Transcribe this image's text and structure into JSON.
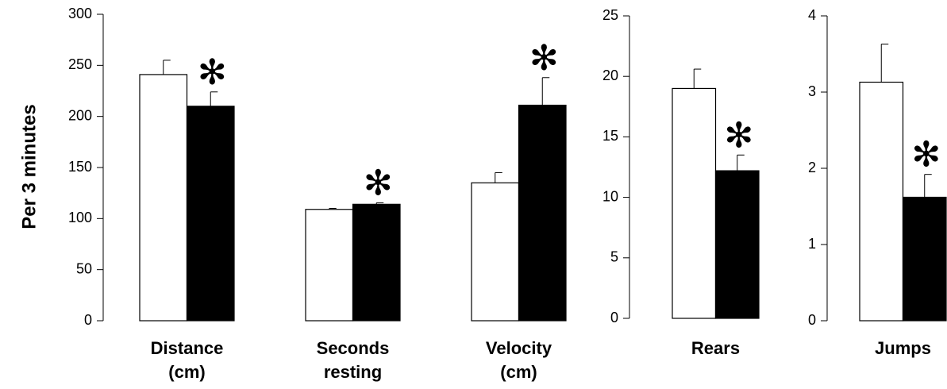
{
  "chart_data": [
    {
      "type": "bar",
      "y_label": "Per 3 minutes",
      "categories": [
        [
          "Distance",
          "(cm)"
        ],
        [
          "Seconds",
          "resting"
        ],
        [
          "Velocity",
          "(cm)"
        ]
      ],
      "series": [
        {
          "color": "#ffffff",
          "values": [
            241,
            109,
            135
          ],
          "errors": [
            14,
            1,
            10
          ]
        },
        {
          "color": "#000000",
          "values": [
            210,
            114,
            211
          ],
          "errors": [
            14,
            1.5,
            27
          ],
          "annotations": [
            "✻",
            "✻",
            "✻"
          ]
        }
      ],
      "ylim": [
        0,
        300
      ],
      "yticks": [
        0,
        50,
        100,
        150,
        200,
        250,
        300
      ]
    },
    {
      "type": "bar",
      "categories": [
        [
          "Rears"
        ]
      ],
      "series": [
        {
          "color": "#ffffff",
          "values": [
            19
          ],
          "errors": [
            1.6
          ]
        },
        {
          "color": "#000000",
          "values": [
            12.2
          ],
          "errors": [
            1.3
          ],
          "annotations": [
            "✻"
          ]
        }
      ],
      "ylim": [
        0,
        25
      ],
      "yticks": [
        0,
        5,
        10,
        15,
        20,
        25
      ]
    },
    {
      "type": "bar",
      "categories": [
        [
          "Jumps"
        ]
      ],
      "series": [
        {
          "color": "#ffffff",
          "values": [
            3.13
          ],
          "errors": [
            0.5
          ]
        },
        {
          "color": "#000000",
          "values": [
            1.62
          ],
          "errors": [
            0.3
          ],
          "annotations": [
            "✻"
          ]
        }
      ],
      "ylim": [
        0,
        4
      ],
      "yticks": [
        0,
        1,
        2,
        3,
        4
      ]
    }
  ]
}
